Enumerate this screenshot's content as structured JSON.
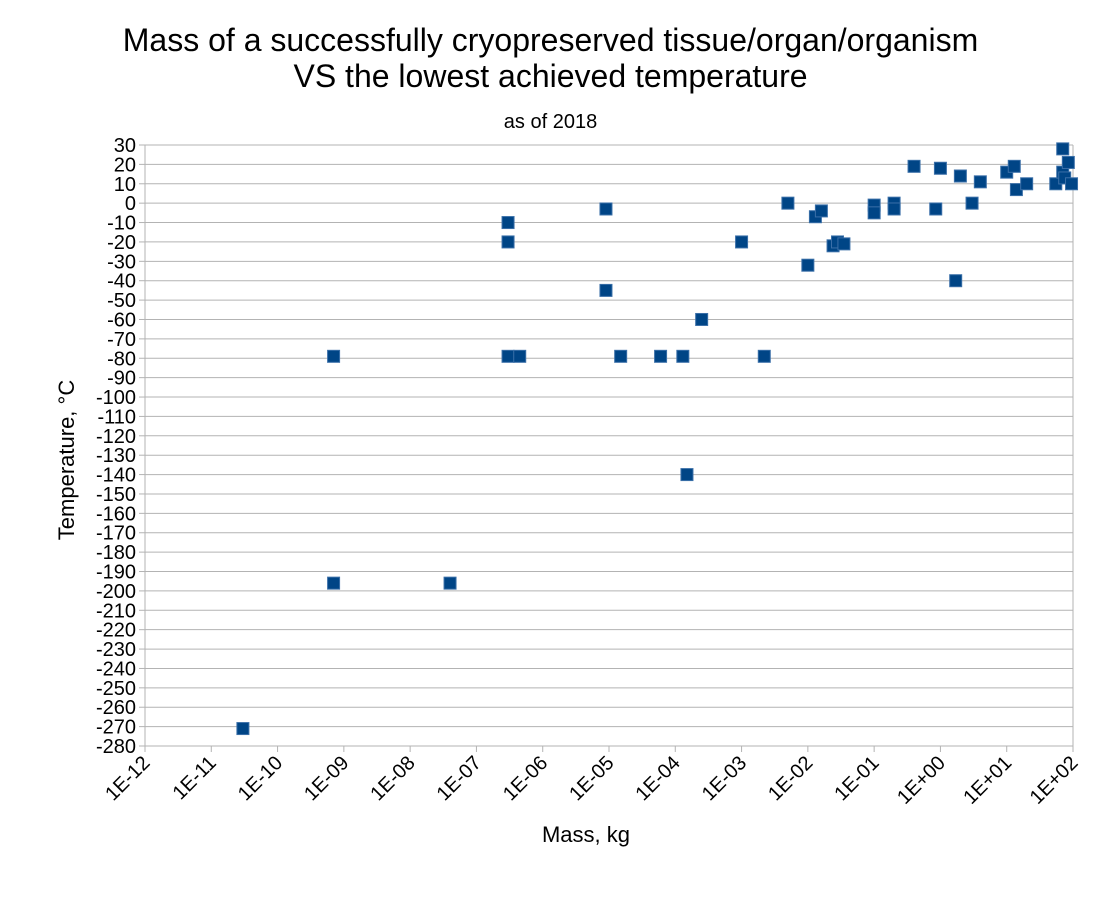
{
  "chart_data": {
    "type": "scatter",
    "title": "Mass of a successfully cryopreserved tissue/organ/organism",
    "title_line2": "VS the lowest achieved temperature",
    "subtitle": "as of 2018",
    "xlabel": "Mass, kg",
    "ylabel": "Temperature, °C",
    "x_scale": "log",
    "xlim": [
      1e-12,
      100
    ],
    "ylim": [
      -280,
      30
    ],
    "y_tick_step": 10,
    "x_tick_labels": [
      "1E-12",
      "1E-11",
      "1E-10",
      "1E-09",
      "1E-08",
      "1E-07",
      "1E-06",
      "1E-05",
      "1E-04",
      "1E-03",
      "1E-02",
      "1E-01",
      "1E+00",
      "1E+01",
      "1E+02"
    ],
    "grid": "horizontal",
    "legend": "none",
    "marker": "square",
    "marker_color": "#004586",
    "points": [
      {
        "x": 3e-11,
        "y": -271
      },
      {
        "x": 7e-10,
        "y": -79
      },
      {
        "x": 7e-10,
        "y": -196
      },
      {
        "x": 4e-08,
        "y": -196
      },
      {
        "x": 3e-07,
        "y": -10
      },
      {
        "x": 3e-07,
        "y": -20
      },
      {
        "x": 3e-07,
        "y": -79
      },
      {
        "x": 4.5e-07,
        "y": -79
      },
      {
        "x": 9e-06,
        "y": -3
      },
      {
        "x": 9e-06,
        "y": -45
      },
      {
        "x": 1.5e-05,
        "y": -79
      },
      {
        "x": 6e-05,
        "y": -79
      },
      {
        "x": 0.00013,
        "y": -79
      },
      {
        "x": 0.00015,
        "y": -140
      },
      {
        "x": 0.00025,
        "y": -60
      },
      {
        "x": 0.001,
        "y": -20
      },
      {
        "x": 0.0022,
        "y": -79
      },
      {
        "x": 0.005,
        "y": 0
      },
      {
        "x": 0.01,
        "y": -32
      },
      {
        "x": 0.013,
        "y": -7
      },
      {
        "x": 0.016,
        "y": -4
      },
      {
        "x": 0.024,
        "y": -22
      },
      {
        "x": 0.028,
        "y": -20
      },
      {
        "x": 0.035,
        "y": -21
      },
      {
        "x": 0.1,
        "y": -1
      },
      {
        "x": 0.1,
        "y": -5
      },
      {
        "x": 0.2,
        "y": 0
      },
      {
        "x": 0.2,
        "y": -3
      },
      {
        "x": 0.4,
        "y": 19
      },
      {
        "x": 0.85,
        "y": -3
      },
      {
        "x": 1.0,
        "y": 18
      },
      {
        "x": 1.7,
        "y": -40
      },
      {
        "x": 2.0,
        "y": 14
      },
      {
        "x": 3.0,
        "y": 0
      },
      {
        "x": 4.0,
        "y": 11
      },
      {
        "x": 10,
        "y": 16
      },
      {
        "x": 13,
        "y": 19
      },
      {
        "x": 14,
        "y": 7
      },
      {
        "x": 20,
        "y": 10
      },
      {
        "x": 55,
        "y": 10
      },
      {
        "x": 70,
        "y": 28
      },
      {
        "x": 70,
        "y": 16
      },
      {
        "x": 75,
        "y": 13
      },
      {
        "x": 85,
        "y": 21
      },
      {
        "x": 95,
        "y": 10
      }
    ]
  }
}
